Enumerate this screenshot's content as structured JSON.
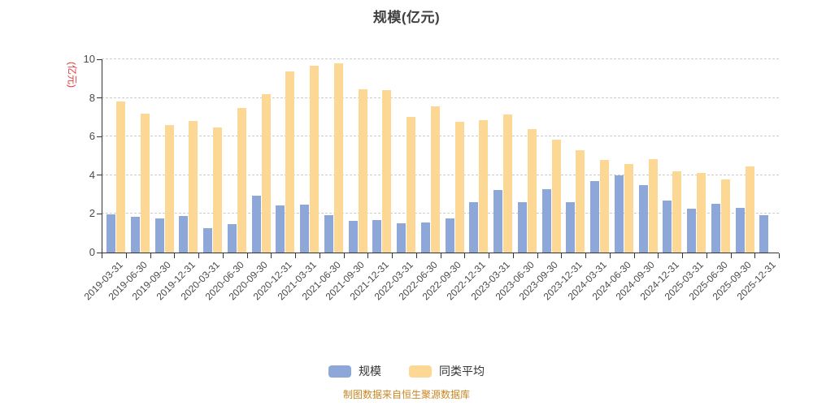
{
  "header": {
    "title": "规模(亿元)"
  },
  "axes": {
    "y_unit_label": "(亿元)",
    "yticks": [
      0,
      2,
      4,
      6,
      8,
      10
    ]
  },
  "footer": {
    "source_note": "制图数据来自恒生聚源数据库"
  },
  "colors": {
    "scale_bar": "#8CA7D8",
    "peer_avg_bar": "#FCD894",
    "y_unit_label": "#E5383B",
    "source_note": "#CA8622",
    "axis_line": "#333333",
    "tick_label": "#4A4A4A",
    "gridline": "#CCCCCC",
    "title": "#404040"
  },
  "chart_data": {
    "type": "bar",
    "title": "规模(亿元)",
    "xlabel": "",
    "ylabel": "(亿元)",
    "ylim": [
      0,
      10
    ],
    "yticks": [
      0,
      2,
      4,
      6,
      8,
      10
    ],
    "grid": "horizontal-dashed",
    "legend_position": "bottom",
    "categories": [
      "2019-03-31",
      "2019-06-30",
      "2019-09-30",
      "2019-12-31",
      "2020-03-31",
      "2020-06-30",
      "2020-09-30",
      "2020-12-31",
      "2021-03-31",
      "2021-06-30",
      "2021-09-30",
      "2021-12-31",
      "2022-03-31",
      "2022-06-30",
      "2022-09-30",
      "2022-12-31",
      "2023-03-31",
      "2023-06-30",
      "2023-09-30",
      "2023-12-31",
      "2024-03-31",
      "2024-06-30",
      "2024-09-30",
      "2024-12-31",
      "2025-03-31",
      "2025-06-30",
      "2025-09-30",
      "2025-12-31"
    ],
    "series": [
      {
        "name": "规模",
        "key": "scale",
        "color": "#8CA7D8",
        "values": [
          1.97,
          1.83,
          1.75,
          1.9,
          1.28,
          1.48,
          2.94,
          2.45,
          2.47,
          1.95,
          1.65,
          1.67,
          1.52,
          1.57,
          1.78,
          2.62,
          3.22,
          2.6,
          3.28,
          2.62,
          3.7,
          4.0,
          3.5,
          2.7,
          2.28,
          2.52,
          2.3,
          1.95
        ]
      },
      {
        "name": "同类平均",
        "key": "peer-average",
        "color": "#FCD894",
        "values": [
          7.8,
          7.2,
          6.6,
          6.8,
          6.45,
          7.48,
          8.2,
          9.35,
          9.65,
          9.8,
          8.45,
          8.4,
          7.02,
          7.55,
          6.75,
          6.85,
          7.15,
          6.4,
          5.85,
          5.3,
          4.8,
          4.58,
          4.85,
          4.22,
          4.1,
          3.8,
          4.45,
          null
        ]
      }
    ]
  }
}
